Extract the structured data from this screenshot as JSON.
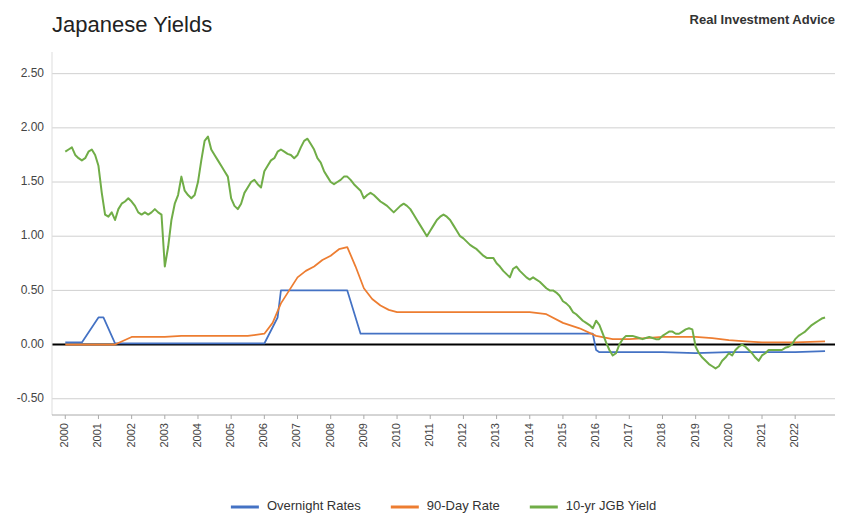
{
  "chart_data": {
    "type": "line",
    "title": "Japanese Yields",
    "annotations": [
      "Real Investment Advice"
    ],
    "xlim": [
      1999.6,
      2023.2
    ],
    "xticks": [
      2000,
      2001,
      2002,
      2003,
      2004,
      2005,
      2006,
      2007,
      2008,
      2009,
      2010,
      2011,
      2012,
      2013,
      2014,
      2015,
      2016,
      2017,
      2018,
      2019,
      2020,
      2021,
      2022
    ],
    "ylim": [
      -0.65,
      2.7
    ],
    "yticks": [
      {
        "value": -0.5,
        "label": "-0.50"
      },
      {
        "value": 0.0,
        "label": "0.00"
      },
      {
        "value": 0.5,
        "label": "0.50"
      },
      {
        "value": 1.0,
        "label": "1.00"
      },
      {
        "value": 1.5,
        "label": "1.50"
      },
      {
        "value": 2.0,
        "label": "2.00"
      },
      {
        "value": 2.5,
        "label": "2.50"
      }
    ],
    "grid": true,
    "legend": "bottom",
    "series": [
      {
        "name": "Overnight Rates",
        "color": "#4472c4",
        "x": [
          2000.0,
          2000.4,
          2000.5,
          2001.0,
          2001.05,
          2001.1,
          2001.15,
          2001.5,
          2001.75,
          2002.0,
          2003.0,
          2004.0,
          2005.0,
          2005.9,
          2006.0,
          2006.4,
          2006.5,
          2007.0,
          2007.5,
          2008.0,
          2008.5,
          2008.9,
          2009.0,
          2009.1,
          2010.0,
          2011.0,
          2012.0,
          2013.0,
          2014.0,
          2015.0,
          2015.9,
          2016.0,
          2016.1,
          2017.0,
          2018.0,
          2019.0,
          2020.0,
          2021.0,
          2022.0,
          2022.9
        ],
        "values": [
          0.02,
          0.02,
          0.02,
          0.25,
          0.25,
          0.25,
          0.25,
          0.01,
          0.01,
          0.01,
          0.01,
          0.01,
          0.01,
          0.01,
          0.01,
          0.25,
          0.5,
          0.5,
          0.5,
          0.5,
          0.5,
          0.1,
          0.1,
          0.1,
          0.1,
          0.1,
          0.1,
          0.1,
          0.1,
          0.1,
          0.1,
          -0.05,
          -0.07,
          -0.07,
          -0.07,
          -0.08,
          -0.07,
          -0.07,
          -0.07,
          -0.06
        ]
      },
      {
        "name": "90-Day Rate",
        "color": "#ed7d31",
        "x": [
          2000.0,
          2000.5,
          2001.0,
          2001.5,
          2002.0,
          2002.5,
          2003.0,
          2003.5,
          2004.0,
          2004.5,
          2005.0,
          2005.5,
          2006.0,
          2006.25,
          2006.5,
          2006.75,
          2007.0,
          2007.25,
          2007.5,
          2007.75,
          2008.0,
          2008.25,
          2008.5,
          2008.75,
          2009.0,
          2009.25,
          2009.5,
          2009.75,
          2010.0,
          2010.5,
          2011.0,
          2011.5,
          2012.0,
          2012.5,
          2013.0,
          2013.5,
          2014.0,
          2014.5,
          2015.0,
          2015.5,
          2016.0,
          2016.5,
          2017.0,
          2017.5,
          2018.0,
          2018.5,
          2019.0,
          2019.5,
          2020.0,
          2020.5,
          2021.0,
          2021.5,
          2022.0,
          2022.9
        ],
        "values": [
          0.0,
          0.0,
          0.0,
          0.0,
          0.07,
          0.07,
          0.07,
          0.08,
          0.08,
          0.08,
          0.08,
          0.08,
          0.1,
          0.2,
          0.38,
          0.5,
          0.62,
          0.68,
          0.72,
          0.78,
          0.82,
          0.88,
          0.9,
          0.72,
          0.52,
          0.42,
          0.36,
          0.32,
          0.3,
          0.3,
          0.3,
          0.3,
          0.3,
          0.3,
          0.3,
          0.3,
          0.3,
          0.28,
          0.2,
          0.15,
          0.08,
          0.05,
          0.05,
          0.06,
          0.07,
          0.07,
          0.07,
          0.06,
          0.04,
          0.03,
          0.02,
          0.02,
          0.02,
          0.03
        ]
      },
      {
        "name": "10-yr JGB Yield",
        "color": "#70ad47",
        "x": [
          2000.0,
          2000.1,
          2000.2,
          2000.3,
          2000.4,
          2000.5,
          2000.6,
          2000.7,
          2000.8,
          2000.9,
          2001.0,
          2001.1,
          2001.2,
          2001.3,
          2001.4,
          2001.5,
          2001.6,
          2001.7,
          2001.8,
          2001.9,
          2002.0,
          2002.1,
          2002.2,
          2002.3,
          2002.4,
          2002.5,
          2002.6,
          2002.7,
          2002.8,
          2002.9,
          2003.0,
          2003.1,
          2003.2,
          2003.3,
          2003.4,
          2003.5,
          2003.6,
          2003.7,
          2003.8,
          2003.9,
          2004.0,
          2004.1,
          2004.2,
          2004.3,
          2004.4,
          2004.5,
          2004.6,
          2004.7,
          2004.8,
          2004.9,
          2005.0,
          2005.1,
          2005.2,
          2005.3,
          2005.4,
          2005.5,
          2005.6,
          2005.7,
          2005.8,
          2005.9,
          2006.0,
          2006.1,
          2006.2,
          2006.3,
          2006.4,
          2006.5,
          2006.6,
          2006.7,
          2006.8,
          2006.9,
          2007.0,
          2007.1,
          2007.2,
          2007.3,
          2007.4,
          2007.5,
          2007.6,
          2007.7,
          2007.8,
          2007.9,
          2008.0,
          2008.1,
          2008.2,
          2008.3,
          2008.4,
          2008.5,
          2008.6,
          2008.7,
          2008.8,
          2008.9,
          2009.0,
          2009.1,
          2009.2,
          2009.3,
          2009.4,
          2009.5,
          2009.6,
          2009.7,
          2009.8,
          2009.9,
          2010.0,
          2010.1,
          2010.2,
          2010.3,
          2010.4,
          2010.5,
          2010.6,
          2010.7,
          2010.8,
          2010.9,
          2011.0,
          2011.1,
          2011.2,
          2011.3,
          2011.4,
          2011.5,
          2011.6,
          2011.7,
          2011.8,
          2011.9,
          2012.0,
          2012.1,
          2012.2,
          2012.3,
          2012.4,
          2012.5,
          2012.6,
          2012.7,
          2012.8,
          2012.9,
          2013.0,
          2013.1,
          2013.2,
          2013.3,
          2013.4,
          2013.5,
          2013.6,
          2013.7,
          2013.8,
          2013.9,
          2014.0,
          2014.1,
          2014.2,
          2014.3,
          2014.4,
          2014.5,
          2014.6,
          2014.7,
          2014.8,
          2014.9,
          2015.0,
          2015.1,
          2015.2,
          2015.3,
          2015.4,
          2015.5,
          2015.6,
          2015.7,
          2015.8,
          2015.9,
          2016.0,
          2016.1,
          2016.2,
          2016.3,
          2016.4,
          2016.5,
          2016.6,
          2016.7,
          2016.8,
          2016.9,
          2017.0,
          2017.1,
          2017.2,
          2017.3,
          2017.4,
          2017.5,
          2017.6,
          2017.7,
          2017.8,
          2017.9,
          2018.0,
          2018.1,
          2018.2,
          2018.3,
          2018.4,
          2018.5,
          2018.6,
          2018.7,
          2018.8,
          2018.9,
          2019.0,
          2019.1,
          2019.2,
          2019.3,
          2019.4,
          2019.5,
          2019.6,
          2019.7,
          2019.8,
          2019.9,
          2020.0,
          2020.1,
          2020.2,
          2020.3,
          2020.4,
          2020.5,
          2020.6,
          2020.7,
          2020.8,
          2020.9,
          2021.0,
          2021.1,
          2021.2,
          2021.3,
          2021.4,
          2021.5,
          2021.6,
          2021.7,
          2021.8,
          2021.9,
          2022.0,
          2022.1,
          2022.2,
          2022.3,
          2022.4,
          2022.5,
          2022.6,
          2022.7,
          2022.8,
          2022.9
        ],
        "values": [
          1.78,
          1.8,
          1.82,
          1.75,
          1.72,
          1.7,
          1.72,
          1.78,
          1.8,
          1.75,
          1.65,
          1.4,
          1.2,
          1.18,
          1.22,
          1.15,
          1.25,
          1.3,
          1.32,
          1.35,
          1.32,
          1.28,
          1.22,
          1.2,
          1.22,
          1.2,
          1.22,
          1.25,
          1.22,
          1.2,
          0.72,
          0.9,
          1.15,
          1.3,
          1.38,
          1.55,
          1.42,
          1.38,
          1.35,
          1.38,
          1.5,
          1.7,
          1.88,
          1.92,
          1.8,
          1.75,
          1.7,
          1.65,
          1.6,
          1.55,
          1.35,
          1.28,
          1.25,
          1.3,
          1.4,
          1.45,
          1.5,
          1.52,
          1.48,
          1.45,
          1.6,
          1.65,
          1.7,
          1.72,
          1.78,
          1.8,
          1.78,
          1.76,
          1.75,
          1.72,
          1.75,
          1.82,
          1.88,
          1.9,
          1.85,
          1.8,
          1.72,
          1.68,
          1.6,
          1.55,
          1.5,
          1.48,
          1.5,
          1.52,
          1.55,
          1.55,
          1.52,
          1.48,
          1.45,
          1.42,
          1.35,
          1.38,
          1.4,
          1.38,
          1.35,
          1.32,
          1.3,
          1.28,
          1.25,
          1.22,
          1.25,
          1.28,
          1.3,
          1.28,
          1.25,
          1.2,
          1.15,
          1.1,
          1.05,
          1.0,
          1.05,
          1.1,
          1.15,
          1.18,
          1.2,
          1.18,
          1.15,
          1.1,
          1.05,
          1.0,
          0.98,
          0.95,
          0.92,
          0.9,
          0.88,
          0.85,
          0.82,
          0.8,
          0.8,
          0.8,
          0.75,
          0.72,
          0.68,
          0.65,
          0.62,
          0.7,
          0.72,
          0.68,
          0.65,
          0.62,
          0.6,
          0.62,
          0.6,
          0.58,
          0.55,
          0.52,
          0.5,
          0.5,
          0.48,
          0.45,
          0.4,
          0.38,
          0.35,
          0.3,
          0.28,
          0.25,
          0.22,
          0.2,
          0.18,
          0.15,
          0.22,
          0.18,
          0.1,
          0.02,
          -0.05,
          -0.1,
          -0.08,
          0.0,
          0.05,
          0.08,
          0.08,
          0.08,
          0.07,
          0.06,
          0.05,
          0.06,
          0.07,
          0.06,
          0.05,
          0.05,
          0.08,
          0.1,
          0.12,
          0.12,
          0.1,
          0.1,
          0.12,
          0.14,
          0.15,
          0.14,
          -0.02,
          -0.08,
          -0.12,
          -0.15,
          -0.18,
          -0.2,
          -0.22,
          -0.2,
          -0.15,
          -0.12,
          -0.08,
          -0.1,
          -0.05,
          -0.02,
          0.0,
          -0.02,
          -0.05,
          -0.08,
          -0.12,
          -0.15,
          -0.1,
          -0.08,
          -0.05,
          -0.05,
          -0.05,
          -0.05,
          -0.05,
          -0.03,
          -0.02,
          0.0,
          0.05,
          0.08,
          0.1,
          0.12,
          0.15,
          0.18,
          0.2,
          0.22,
          0.24,
          0.25
        ]
      }
    ]
  }
}
